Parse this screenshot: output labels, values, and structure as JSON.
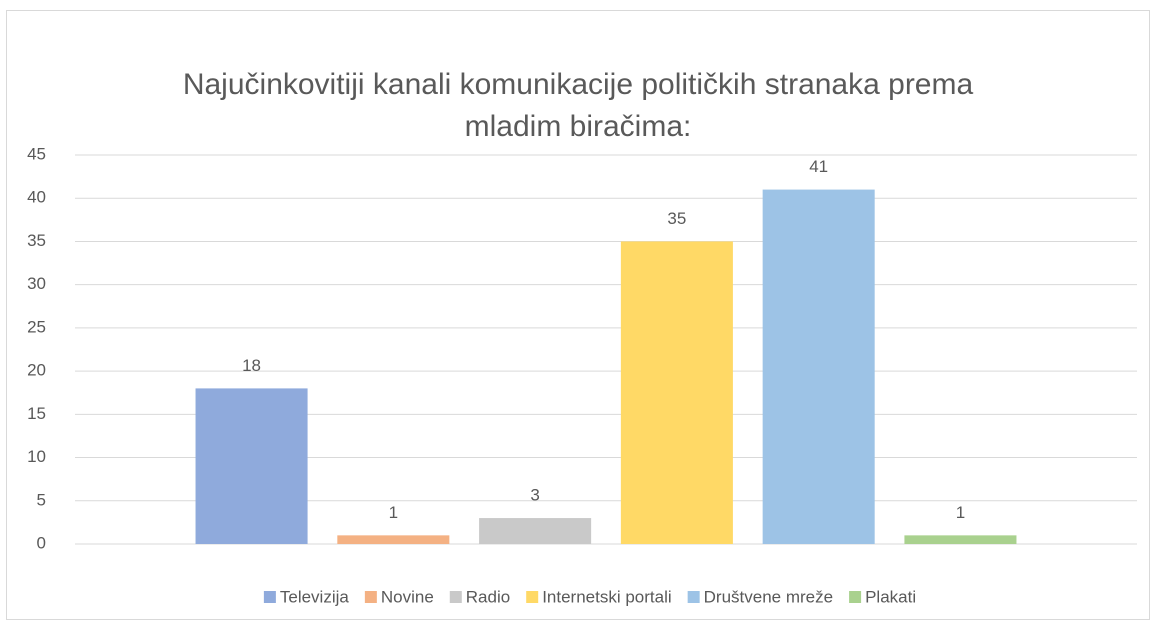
{
  "chart_data": {
    "type": "bar",
    "title": [
      "Najučinkovitiji kanali komunikacije političkih stranaka prema",
      "mladim biračima:"
    ],
    "categories": [
      null
    ],
    "series": [
      {
        "name": "Televizija",
        "color": "#8faadc",
        "values": [
          18
        ]
      },
      {
        "name": "Novine",
        "color": "#f4b183",
        "values": [
          1
        ]
      },
      {
        "name": "Radio",
        "color": "#c9c9c9",
        "values": [
          3
        ]
      },
      {
        "name": "Internetski portali",
        "color": "#ffd966",
        "values": [
          35
        ]
      },
      {
        "name": "Društvene mreže",
        "color": "#9dc3e6",
        "values": [
          41
        ]
      },
      {
        "name": "Plakati",
        "color": "#a9d18e",
        "values": [
          1
        ]
      }
    ],
    "ylim": [
      0,
      45
    ],
    "yticks": [
      0,
      5,
      10,
      15,
      20,
      25,
      30,
      35,
      40,
      45
    ],
    "grid": true,
    "legend": "bottom"
  }
}
